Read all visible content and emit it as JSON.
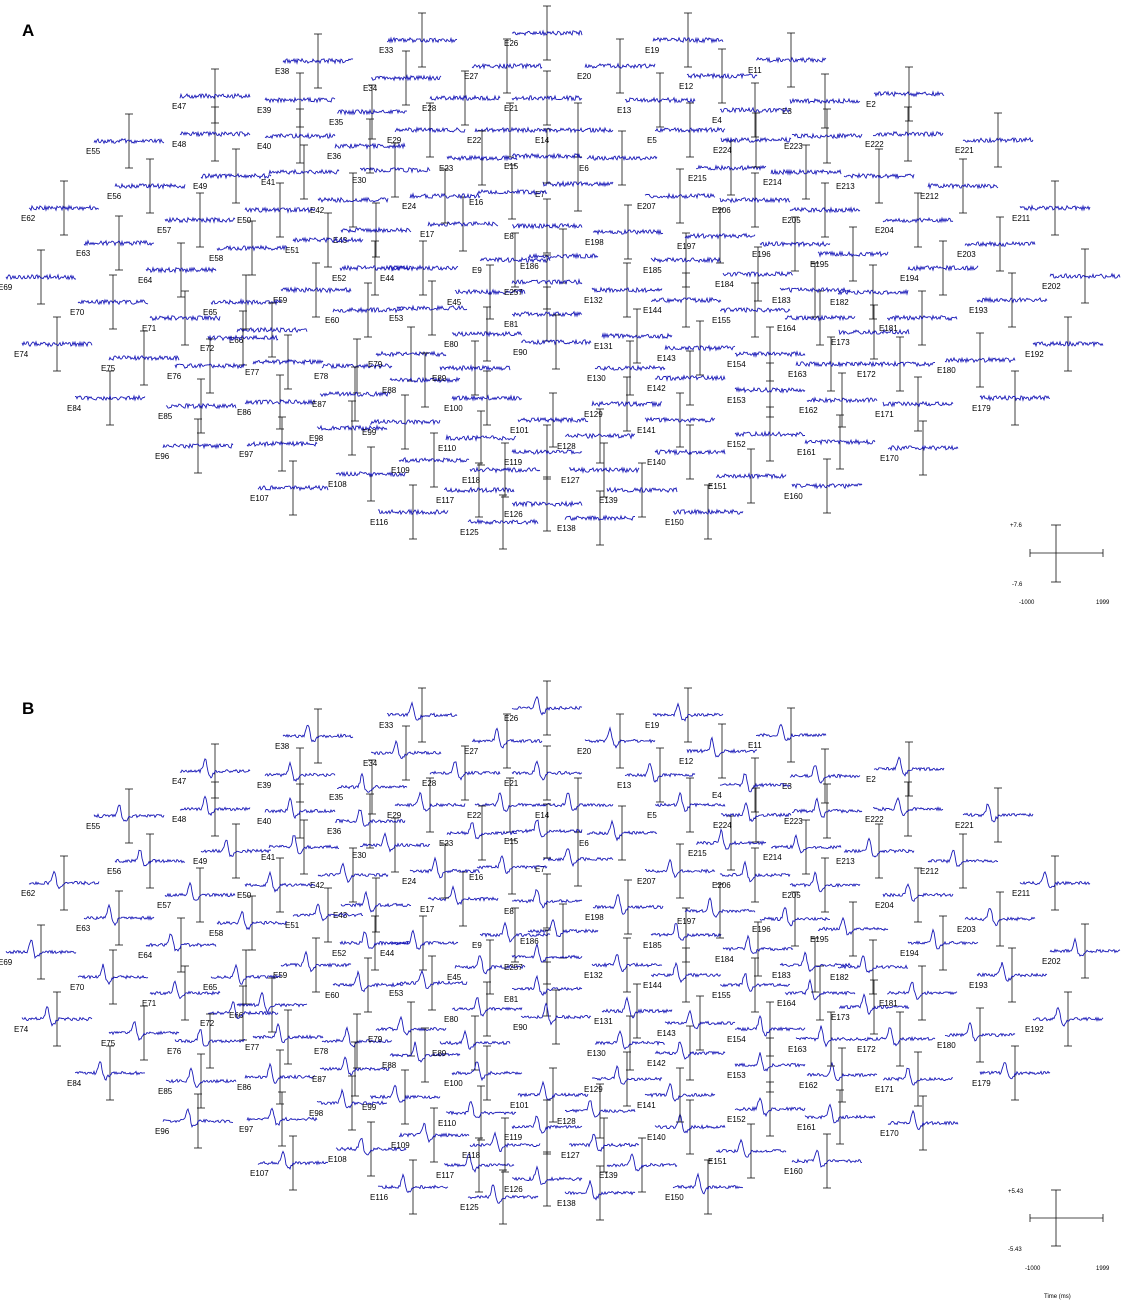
{
  "panels": [
    {
      "label": "A",
      "scale": {
        "top": "+7.6",
        "bottom": "-7.6",
        "left": "-1000",
        "right": "1999"
      },
      "time_label": ""
    },
    {
      "label": "B",
      "scale": {
        "top": "+5.43",
        "bottom": "-5.43",
        "left": "-1000",
        "right": "1999"
      },
      "time_label": "Time (ms)"
    }
  ],
  "colors": {
    "trace": "#1a1ab8",
    "axis": "#111111"
  },
  "chart_data": [
    {
      "type": "line",
      "panel": "A",
      "title": "",
      "series": [
        {
          "name": "",
          "description_values": "noise-like baseline traces at each electrode"
        }
      ],
      "xlim": [
        -1000,
        1999
      ],
      "ylim": [
        -7.6,
        7.6
      ],
      "electrodes": [
        "E2",
        "E3",
        "E4",
        "E5",
        "E6",
        "E7",
        "E8",
        "E9",
        "E11",
        "E12",
        "E13",
        "E14",
        "E15",
        "E16",
        "E17",
        "E19",
        "E20",
        "E21",
        "E22",
        "E23",
        "E24",
        "E26",
        "E27",
        "E28",
        "E29",
        "E30",
        "E33",
        "E34",
        "E35",
        "E36",
        "E38",
        "E39",
        "E40",
        "E41",
        "E42",
        "E43",
        "E44",
        "E45",
        "E47",
        "E48",
        "E49",
        "E50",
        "E51",
        "E52",
        "E53",
        "E55",
        "E56",
        "E57",
        "E58",
        "E59",
        "E60",
        "E62",
        "E63",
        "E64",
        "E65",
        "E66",
        "E69",
        "E70",
        "E71",
        "E72",
        "E74",
        "E75",
        "E76",
        "E77",
        "E78",
        "E79",
        "E80",
        "E81",
        "E84",
        "E85",
        "E86",
        "E87",
        "E88",
        "E89",
        "E90",
        "E96",
        "E97",
        "E98",
        "E99",
        "E100",
        "E101",
        "E107",
        "E108",
        "E109",
        "E110",
        "E116",
        "E117",
        "E118",
        "E119",
        "E125",
        "E126",
        "E127",
        "E128",
        "E129",
        "E130",
        "E131",
        "E132",
        "E138",
        "E139",
        "E140",
        "E141",
        "E142",
        "E143",
        "E144",
        "E150",
        "E151",
        "E152",
        "E153",
        "E154",
        "E155",
        "E160",
        "E161",
        "E162",
        "E163",
        "E164",
        "E170",
        "E171",
        "E172",
        "E173",
        "E179",
        "E180",
        "E181",
        "E182",
        "E183",
        "E184",
        "E185",
        "E186",
        "E192",
        "E193",
        "E194",
        "E195",
        "E196",
        "E197",
        "E198",
        "E202",
        "E203",
        "E204",
        "E205",
        "E206",
        "E207",
        "E211",
        "E212",
        "E213",
        "E214",
        "E215",
        "E221",
        "E222",
        "E223",
        "E224",
        "E257"
      ]
    },
    {
      "type": "line",
      "panel": "B",
      "title": "",
      "xlabel": "Time (ms)",
      "xlim": [
        -1000,
        1999
      ],
      "ylim": [
        -5.43,
        5.43
      ],
      "electrodes": [
        "E2",
        "E3",
        "E4",
        "E5",
        "E6",
        "E7",
        "E8",
        "E9",
        "E11",
        "E12",
        "E13",
        "E14",
        "E15",
        "E16",
        "E17",
        "E19",
        "E20",
        "E21",
        "E22",
        "E23",
        "E24",
        "E26",
        "E27",
        "E28",
        "E29",
        "E30",
        "E33",
        "E34",
        "E35",
        "E36",
        "E38",
        "E39",
        "E40",
        "E41",
        "E42",
        "E43",
        "E44",
        "E45",
        "E47",
        "E48",
        "E49",
        "E50",
        "E51",
        "E52",
        "E53",
        "E55",
        "E56",
        "E57",
        "E58",
        "E59",
        "E60",
        "E62",
        "E63",
        "E64",
        "E65",
        "E66",
        "E69",
        "E70",
        "E71",
        "E72",
        "E74",
        "E75",
        "E76",
        "E77",
        "E78",
        "E79",
        "E80",
        "E81",
        "E84",
        "E85",
        "E86",
        "E87",
        "E88",
        "E89",
        "E90",
        "E96",
        "E97",
        "E98",
        "E99",
        "E100",
        "E101",
        "E107",
        "E108",
        "E109",
        "E110",
        "E116",
        "E117",
        "E118",
        "E119",
        "E125",
        "E126",
        "E127",
        "E128",
        "E129",
        "E130",
        "E131",
        "E132",
        "E138",
        "E139",
        "E140",
        "E141",
        "E142",
        "E143",
        "E144",
        "E150",
        "E151",
        "E152",
        "E153",
        "E154",
        "E155",
        "E160",
        "E161",
        "E162",
        "E163",
        "E164",
        "E170",
        "E171",
        "E172",
        "E173",
        "E179",
        "E180",
        "E181",
        "E182",
        "E183",
        "E184",
        "E185",
        "E186",
        "E192",
        "E193",
        "E194",
        "E195",
        "E196",
        "E197",
        "E198",
        "E202",
        "E203",
        "E204",
        "E205",
        "E206",
        "E207",
        "E211",
        "E212",
        "E213",
        "E214",
        "E215",
        "E221",
        "E222",
        "E223",
        "E224",
        "E257"
      ]
    }
  ]
}
